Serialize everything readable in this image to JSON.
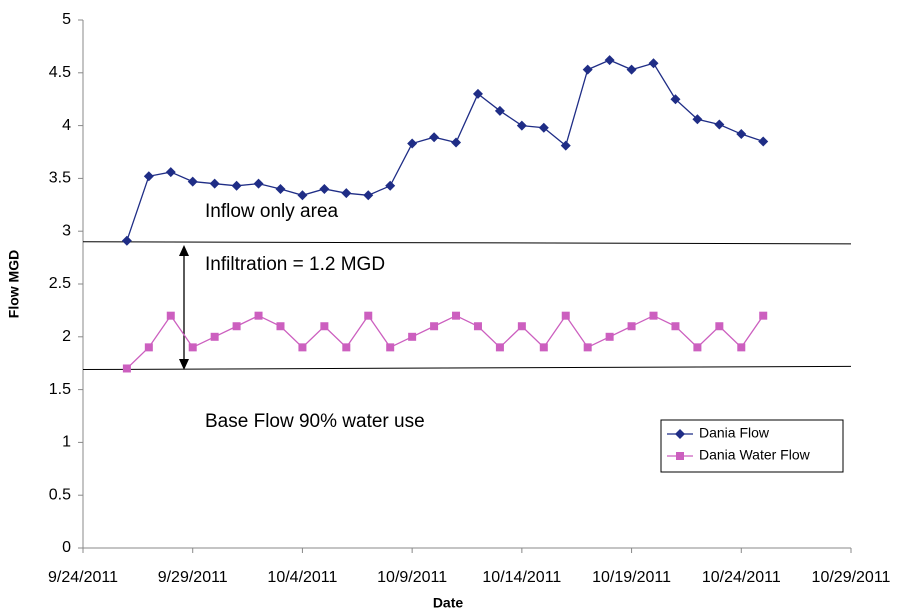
{
  "chart_data": {
    "type": "line",
    "x_label": "Date",
    "y_label": "Flow MGD",
    "x": [
      "2011-09-26",
      "2011-09-27",
      "2011-09-28",
      "2011-09-29",
      "2011-09-30",
      "2011-10-01",
      "2011-10-02",
      "2011-10-03",
      "2011-10-04",
      "2011-10-05",
      "2011-10-06",
      "2011-10-07",
      "2011-10-08",
      "2011-10-09",
      "2011-10-10",
      "2011-10-11",
      "2011-10-12",
      "2011-10-13",
      "2011-10-14",
      "2011-10-15",
      "2011-10-16",
      "2011-10-17",
      "2011-10-18",
      "2011-10-19",
      "2011-10-20",
      "2011-10-21",
      "2011-10-22",
      "2011-10-23",
      "2011-10-24",
      "2011-10-25"
    ],
    "series": [
      {
        "name": "Dania Flow",
        "color": "#1f2d86",
        "marker": "diamond",
        "values": [
          2.91,
          3.52,
          3.56,
          3.47,
          3.45,
          3.43,
          3.45,
          3.4,
          3.34,
          3.4,
          3.36,
          3.34,
          3.43,
          3.83,
          3.89,
          3.84,
          4.3,
          4.14,
          4.0,
          3.98,
          3.81,
          4.53,
          4.62,
          4.53,
          4.59,
          4.25,
          4.06,
          4.01,
          3.92,
          3.85
        ]
      },
      {
        "name": "Dania Water Flow",
        "color": "#cc5fbf",
        "marker": "square",
        "values": [
          1.7,
          1.9,
          2.2,
          1.9,
          2.0,
          2.1,
          2.2,
          2.1,
          1.9,
          2.1,
          1.9,
          2.2,
          1.9,
          2.0,
          2.1,
          2.2,
          2.1,
          1.9,
          2.1,
          1.9,
          2.2,
          1.9,
          2.0,
          2.1,
          2.2,
          2.1,
          1.9,
          2.1,
          1.9,
          2.2
        ]
      }
    ],
    "xlim": [
      "2011-09-24",
      "2011-10-29"
    ],
    "xticks": [
      {
        "value": "2011-09-24",
        "label": "9/24/2011"
      },
      {
        "value": "2011-09-29",
        "label": "9/29/2011"
      },
      {
        "value": "2011-10-04",
        "label": "10/4/2011"
      },
      {
        "value": "2011-10-09",
        "label": "10/9/2011"
      },
      {
        "value": "2011-10-14",
        "label": "10/14/2011"
      },
      {
        "value": "2011-10-19",
        "label": "10/19/2011"
      },
      {
        "value": "2011-10-24",
        "label": "10/24/2011"
      },
      {
        "value": "2011-10-29",
        "label": "10/29/2011"
      }
    ],
    "ylim": [
      0,
      5
    ],
    "yticks": [
      0,
      0.5,
      1,
      1.5,
      2,
      2.5,
      3,
      3.5,
      4,
      4.5,
      5
    ],
    "grid": false,
    "legend": "lower right",
    "reference_lines": [
      {
        "x": [
          "2011-09-24",
          "2011-10-29"
        ],
        "y": [
          2.9,
          2.88
        ]
      },
      {
        "x": [
          "2011-09-24",
          "2011-10-29"
        ],
        "y": [
          1.69,
          1.72
        ]
      }
    ],
    "annotations": [
      {
        "text": "Inflow only area"
      },
      {
        "text": "Infiltration = 1.2 MGD"
      },
      {
        "text": "Base Flow 90% water use"
      }
    ]
  }
}
